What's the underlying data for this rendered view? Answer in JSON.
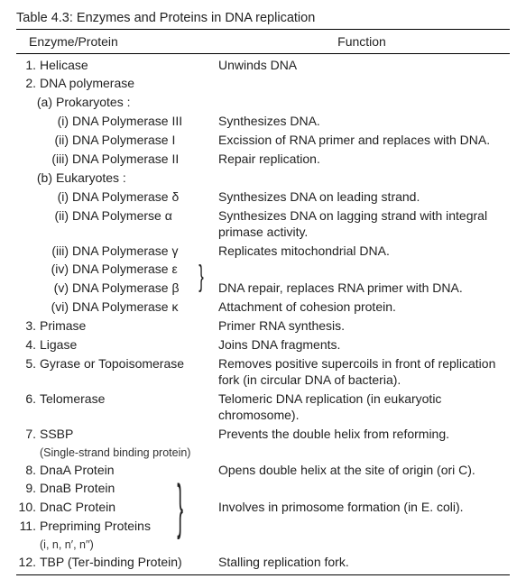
{
  "title": "Table 4.3: Enzymes and Proteins in DNA replication",
  "head": {
    "left": "Enzyme/Protein",
    "right": "Function"
  },
  "r1": {
    "n": "1.",
    "name": "Helicase",
    "fn": "Unwinds DNA"
  },
  "r2": {
    "n": "2.",
    "name": "DNA polymerase"
  },
  "r2a": {
    "n": "(a)",
    "name": "Prokaryotes :"
  },
  "r2a1": {
    "n": "(i)",
    "name": "DNA Polymerase III",
    "fn": "Synthesizes DNA."
  },
  "r2a2": {
    "n": "(ii)",
    "name": "DNA Polymerase I",
    "fn": "Excission of RNA primer and replaces with DNA."
  },
  "r2a3": {
    "n": "(iii)",
    "name": "DNA Polymerase II",
    "fn": "Repair replication."
  },
  "r2b": {
    "n": "(b)",
    "name": "Eukaryotes :"
  },
  "r2b1": {
    "n": "(i)",
    "name": "DNA Polymerase δ",
    "fn": "Synthesizes DNA on leading strand."
  },
  "r2b2": {
    "n": "(ii)",
    "name": "DNA Polymerse α",
    "fn": "Synthesizes DNA on lagging strand with integral primase activity."
  },
  "r2b3": {
    "n": "(iii)",
    "name": "DNA Polymerase γ",
    "fn": "Replicates mitochondrial DNA."
  },
  "r2b4": {
    "n": "(iv)",
    "name": "DNA Polymerase ε"
  },
  "r2b5": {
    "n": "(v)",
    "name": "DNA Polymerase β",
    "fn": "DNA repair, replaces RNA primer with DNA."
  },
  "r2b6": {
    "n": "(vi)",
    "name": "DNA Polymerase κ",
    "fn": "Attachment of cohesion protein."
  },
  "r3": {
    "n": "3.",
    "name": "Primase",
    "fn": "Primer RNA synthesis."
  },
  "r4": {
    "n": "4.",
    "name": "Ligase",
    "fn": "Joins DNA fragments."
  },
  "r5": {
    "n": "5.",
    "name": "Gyrase or Topoisomerase",
    "fn": "Removes positive supercoils in front of replication fork (in circular DNA of bacteria)."
  },
  "r6": {
    "n": "6.",
    "name": "Telomerase",
    "fn": "Telomeric DNA replication (in eukaryotic chromosome)."
  },
  "r7": {
    "n": "7.",
    "name": "SSBP",
    "sub": "(Single-strand binding protein)",
    "fn": "Prevents the double helix from reforming."
  },
  "r8": {
    "n": "8.",
    "name": "DnaA Protein",
    "fn": "Opens double helix at the site of origin (ori C)."
  },
  "r9": {
    "n": "9.",
    "name": "DnaB Protein"
  },
  "r10": {
    "n": "10.",
    "name": "DnaC Protein",
    "fn": "Involves in primosome formation (in E. coli)."
  },
  "r11": {
    "n": "11.",
    "name": "Prepriming Proteins",
    "sub": "(i, n, n′, n′′)"
  },
  "r12": {
    "n": "12.",
    "name": "TBP (Ter-binding Protein)",
    "fn": "Stalling replication fork."
  },
  "sym": {
    "brace": "}"
  }
}
